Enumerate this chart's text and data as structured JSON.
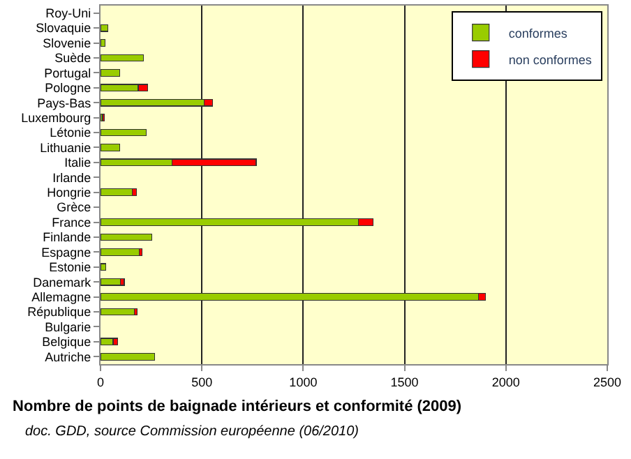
{
  "chart_data": {
    "type": "bar",
    "orientation": "horizontal",
    "stacked": true,
    "title": "Nombre de points de baignade intérieurs et conformité (2009)",
    "annotations": [
      "doc. GDD, source Commission européenne (06/2010)"
    ],
    "categories": [
      "Roy-Uni",
      "Slovaquie",
      "Slovenie",
      "Suède",
      "Portugal",
      "Pologne",
      "Pays-Bas",
      "Luxembourg",
      "Létonie",
      "Lithuanie",
      "Italie",
      "Irlande",
      "Hongrie",
      "Grèce",
      "France",
      "Finlande",
      "Espagne",
      "Estonie",
      "Danemark",
      "Allemagne",
      "République",
      "Bulgarie",
      "Belgique",
      "Autriche"
    ],
    "series": [
      {
        "name": "conformes",
        "color": "#99cc00",
        "values": [
          null,
          37,
          23,
          212,
          95,
          186,
          511,
          10,
          226,
          95,
          354,
          null,
          157,
          null,
          1272,
          253,
          191,
          25,
          99,
          1866,
          168,
          null,
          62,
          267
        ]
      },
      {
        "name": "non conformes",
        "color": "#ff0000",
        "values": [
          null,
          null,
          null,
          null,
          null,
          47,
          41,
          10,
          null,
          null,
          414,
          null,
          20,
          null,
          74,
          null,
          14,
          null,
          18,
          32,
          14,
          null,
          23,
          null
        ]
      }
    ],
    "xlim": [
      0,
      2500
    ],
    "xticks": [
      0,
      500,
      1000,
      1500,
      2000,
      2500
    ],
    "grid": "x",
    "legend": "top right"
  }
}
